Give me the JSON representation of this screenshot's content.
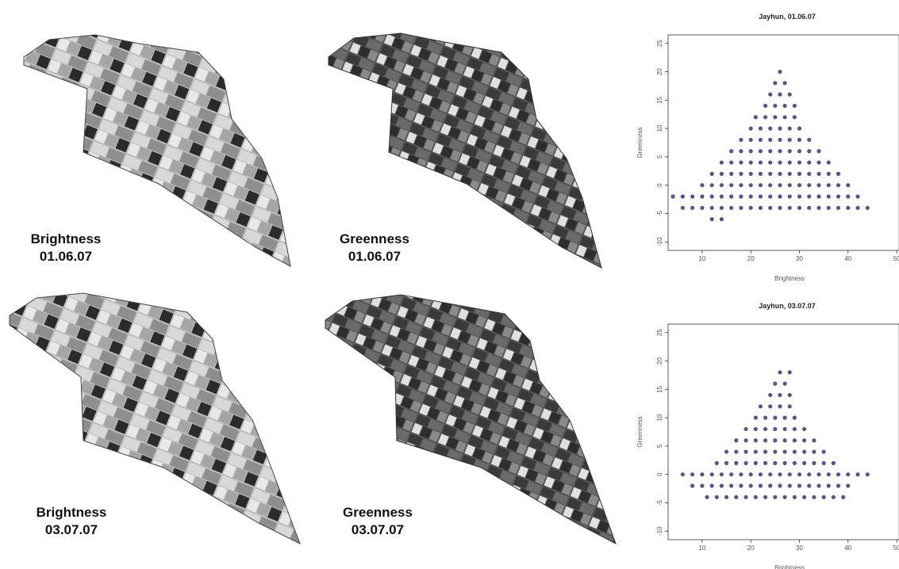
{
  "panels": [
    {
      "label": "Brightness",
      "date": "01.06.07"
    },
    {
      "label": "Greenness",
      "date": "01.06.07"
    },
    {
      "label": "Brightness",
      "date": "03.07.07"
    },
    {
      "label": "Greenness",
      "date": "03.07.07"
    }
  ],
  "chart_data": [
    {
      "type": "scatter",
      "title": "Jayhun, 01.06.07",
      "x_label": "Brightness",
      "y_label": "Greenness",
      "color": "#1f1a6e",
      "x": [
        26,
        25,
        27,
        24,
        26,
        28,
        23,
        25,
        27,
        29,
        21,
        23,
        25,
        27,
        29,
        20,
        22,
        24,
        26,
        28,
        30,
        18,
        20,
        22,
        24,
        26,
        28,
        30,
        32,
        16,
        18,
        20,
        22,
        24,
        26,
        28,
        30,
        32,
        34,
        14,
        16,
        18,
        20,
        22,
        24,
        26,
        28,
        30,
        32,
        34,
        36,
        12,
        14,
        16,
        18,
        20,
        22,
        24,
        26,
        28,
        30,
        32,
        34,
        36,
        38,
        10,
        12,
        14,
        16,
        18,
        20,
        22,
        24,
        26,
        28,
        30,
        32,
        34,
        36,
        38,
        40,
        4,
        6,
        8,
        10,
        12,
        14,
        16,
        18,
        20,
        22,
        24,
        26,
        28,
        30,
        32,
        34,
        36,
        38,
        40,
        42,
        6,
        8,
        10,
        12,
        14,
        16,
        18,
        20,
        22,
        24,
        26,
        28,
        30,
        32,
        34,
        36,
        38,
        40,
        42,
        44,
        12,
        14
      ],
      "values": [
        20,
        18,
        18,
        16,
        16,
        16,
        14,
        14,
        14,
        14,
        12,
        12,
        12,
        12,
        12,
        10,
        10,
        10,
        10,
        10,
        10,
        8,
        8,
        8,
        8,
        8,
        8,
        8,
        8,
        6,
        6,
        6,
        6,
        6,
        6,
        6,
        6,
        6,
        6,
        4,
        4,
        4,
        4,
        4,
        4,
        4,
        4,
        4,
        4,
        4,
        4,
        2,
        2,
        2,
        2,
        2,
        2,
        2,
        2,
        2,
        2,
        2,
        2,
        2,
        2,
        0,
        0,
        0,
        0,
        0,
        0,
        0,
        0,
        0,
        0,
        0,
        0,
        0,
        0,
        0,
        0,
        -2,
        -2,
        -2,
        -2,
        -2,
        -2,
        -2,
        -2,
        -2,
        -2,
        -2,
        -2,
        -2,
        -2,
        -2,
        -2,
        -2,
        -2,
        -2,
        -2,
        -4,
        -4,
        -4,
        -4,
        -4,
        -4,
        -4,
        -4,
        -4,
        -4,
        -4,
        -4,
        -4,
        -4,
        -4,
        -4,
        -4,
        -4,
        -4,
        -4,
        -6,
        -6
      ],
      "xlim": [
        3,
        50.5
      ],
      "xticks": [
        10,
        20,
        30,
        40,
        50
      ],
      "ylim": [
        -11.5,
        26.5
      ],
      "yticks": [
        -10,
        -5,
        0,
        5,
        10,
        15,
        20,
        25
      ]
    },
    {
      "type": "scatter",
      "title": "Jayhun, 03.07.07",
      "x_label": "Brightness",
      "y_label": "Greenness",
      "color": "#1f1a6e",
      "x": [
        26,
        28,
        25,
        27,
        24,
        26,
        28,
        22,
        24,
        26,
        28,
        21,
        23,
        25,
        27,
        29,
        19,
        21,
        23,
        25,
        27,
        29,
        31,
        17,
        19,
        21,
        23,
        25,
        27,
        29,
        31,
        33,
        15,
        17,
        19,
        21,
        23,
        25,
        27,
        29,
        31,
        33,
        35,
        13,
        15,
        17,
        19,
        21,
        23,
        25,
        27,
        29,
        31,
        33,
        35,
        37,
        6,
        8,
        10,
        12,
        14,
        16,
        18,
        20,
        22,
        24,
        26,
        28,
        30,
        32,
        34,
        36,
        38,
        40,
        42,
        44,
        8,
        10,
        12,
        14,
        16,
        18,
        20,
        22,
        24,
        26,
        28,
        30,
        32,
        34,
        36,
        38,
        40,
        11,
        13,
        15,
        17,
        19,
        21,
        23,
        25,
        27,
        29,
        31,
        33,
        35,
        37,
        39
      ],
      "values": [
        18,
        18,
        16,
        16,
        14,
        14,
        14,
        12,
        12,
        12,
        12,
        10,
        10,
        10,
        10,
        10,
        8,
        8,
        8,
        8,
        8,
        8,
        8,
        6,
        6,
        6,
        6,
        6,
        6,
        6,
        6,
        6,
        4,
        4,
        4,
        4,
        4,
        4,
        4,
        4,
        4,
        4,
        4,
        2,
        2,
        2,
        2,
        2,
        2,
        2,
        2,
        2,
        2,
        2,
        2,
        2,
        0,
        0,
        0,
        0,
        0,
        0,
        0,
        0,
        0,
        0,
        0,
        0,
        0,
        0,
        0,
        0,
        0,
        0,
        0,
        0,
        -2,
        -2,
        -2,
        -2,
        -2,
        -2,
        -2,
        -2,
        -2,
        -2,
        -2,
        -2,
        -2,
        -2,
        -2,
        -2,
        -2,
        -4,
        -4,
        -4,
        -4,
        -4,
        -4,
        -4,
        -4,
        -4,
        -4,
        -4,
        -4,
        -4,
        -4,
        -4
      ],
      "xlim": [
        3,
        50.5
      ],
      "xticks": [
        10,
        20,
        30,
        40,
        50
      ],
      "ylim": [
        -11.5,
        26.5
      ],
      "yticks": [
        -10,
        -5,
        0,
        5,
        10,
        15,
        20,
        25
      ]
    }
  ]
}
